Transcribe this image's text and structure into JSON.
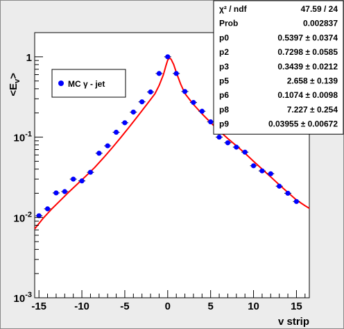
{
  "chart_data": {
    "type": "scatter",
    "xlabel": "v strip",
    "ylabel": "<E",
    "ylabel_sub": "v",
    "ylabel_close": ">",
    "xlim": [
      -15.5,
      16.5
    ],
    "ylim": [
      0.001,
      2
    ],
    "yscale": "log",
    "x_ticks": [
      -15,
      -10,
      -5,
      0,
      5,
      10,
      15
    ],
    "x_tick_labels": [
      "-15",
      "-10",
      "-5",
      "0",
      "5",
      "10",
      "15"
    ],
    "y_ticks": [
      {
        "value": 0.001,
        "base": "10",
        "exp": "-3"
      },
      {
        "value": 0.01,
        "base": "10",
        "exp": "-2"
      },
      {
        "value": 0.1,
        "base": "10",
        "exp": "-1"
      },
      {
        "value": 1,
        "base": "1",
        "exp": ""
      }
    ],
    "grid": false,
    "legend_position": "top-left",
    "series": [
      {
        "name": "MC γ - jet",
        "color": "#0000ff",
        "points": [
          {
            "x": -15,
            "y": 0.0105
          },
          {
            "x": -14,
            "y": 0.0128
          },
          {
            "x": -13,
            "y": 0.0202
          },
          {
            "x": -12,
            "y": 0.021
          },
          {
            "x": -11,
            "y": 0.03
          },
          {
            "x": -10,
            "y": 0.0285
          },
          {
            "x": -9,
            "y": 0.0365
          },
          {
            "x": -8,
            "y": 0.063
          },
          {
            "x": -7,
            "y": 0.078
          },
          {
            "x": -6,
            "y": 0.115
          },
          {
            "x": -5,
            "y": 0.151
          },
          {
            "x": -4,
            "y": 0.205
          },
          {
            "x": -3,
            "y": 0.275
          },
          {
            "x": -2,
            "y": 0.365
          },
          {
            "x": -1,
            "y": 0.62
          },
          {
            "x": 0,
            "y": 1.0
          },
          {
            "x": 1,
            "y": 0.62
          },
          {
            "x": 2,
            "y": 0.37
          },
          {
            "x": 3,
            "y": 0.27
          },
          {
            "x": 4,
            "y": 0.21
          },
          {
            "x": 5,
            "y": 0.155
          },
          {
            "x": 6,
            "y": 0.1
          },
          {
            "x": 7,
            "y": 0.085
          },
          {
            "x": 8,
            "y": 0.075
          },
          {
            "x": 9,
            "y": 0.065
          },
          {
            "x": 10,
            "y": 0.044
          },
          {
            "x": 11,
            "y": 0.038
          },
          {
            "x": 12,
            "y": 0.035
          },
          {
            "x": 13,
            "y": 0.0245
          },
          {
            "x": 14,
            "y": 0.02
          },
          {
            "x": 15,
            "y": 0.0158
          }
        ]
      }
    ],
    "fit": {
      "color": "#ff0000",
      "points": [
        {
          "x": -15.5,
          "y": 0.0072
        },
        {
          "x": -14.5,
          "y": 0.0098
        },
        {
          "x": -13.5,
          "y": 0.0128
        },
        {
          "x": -12.5,
          "y": 0.0163
        },
        {
          "x": -11.5,
          "y": 0.0208
        },
        {
          "x": -10.5,
          "y": 0.0262
        },
        {
          "x": -9.5,
          "y": 0.033
        },
        {
          "x": -8.5,
          "y": 0.042
        },
        {
          "x": -7.5,
          "y": 0.055
        },
        {
          "x": -6.5,
          "y": 0.073
        },
        {
          "x": -5.5,
          "y": 0.098
        },
        {
          "x": -4.5,
          "y": 0.133
        },
        {
          "x": -3.5,
          "y": 0.182
        },
        {
          "x": -2.5,
          "y": 0.25
        },
        {
          "x": -1.5,
          "y": 0.345
        },
        {
          "x": -1.0,
          "y": 0.44
        },
        {
          "x": -0.5,
          "y": 0.6
        },
        {
          "x": -0.2,
          "y": 0.78
        },
        {
          "x": 0.0,
          "y": 0.91
        },
        {
          "x": 0.2,
          "y": 0.97
        },
        {
          "x": 0.4,
          "y": 0.93
        },
        {
          "x": 0.7,
          "y": 0.8
        },
        {
          "x": 1.0,
          "y": 0.64
        },
        {
          "x": 1.5,
          "y": 0.46
        },
        {
          "x": 2.0,
          "y": 0.35
        },
        {
          "x": 3.0,
          "y": 0.255
        },
        {
          "x": 4.0,
          "y": 0.195
        },
        {
          "x": 5.0,
          "y": 0.152
        },
        {
          "x": 6.0,
          "y": 0.12
        },
        {
          "x": 7.0,
          "y": 0.096
        },
        {
          "x": 8.0,
          "y": 0.078
        },
        {
          "x": 9.0,
          "y": 0.063
        },
        {
          "x": 10.0,
          "y": 0.05
        },
        {
          "x": 11.0,
          "y": 0.04
        },
        {
          "x": 12.0,
          "y": 0.032
        },
        {
          "x": 13.0,
          "y": 0.0255
        },
        {
          "x": 14.0,
          "y": 0.0205
        },
        {
          "x": 15.0,
          "y": 0.0165
        },
        {
          "x": 16.0,
          "y": 0.014
        },
        {
          "x": 16.5,
          "y": 0.013
        }
      ]
    },
    "stats": [
      {
        "label": "χ² / ndf",
        "value": "47.59 / 24"
      },
      {
        "label": "Prob",
        "value": "0.002837"
      },
      {
        "label": "p0",
        "value": "0.5397 ± 0.0374"
      },
      {
        "label": "p2",
        "value": "0.7298 ± 0.0585"
      },
      {
        "label": "p3",
        "value": "0.3439 ± 0.0212"
      },
      {
        "label": "p5",
        "value": "2.658 ± 0.139"
      },
      {
        "label": "p6",
        "value": "0.1074 ± 0.0098"
      },
      {
        "label": "p8",
        "value": "7.227 ± 0.254"
      },
      {
        "label": "p9",
        "value": "0.03955 ± 0.00672"
      }
    ]
  }
}
